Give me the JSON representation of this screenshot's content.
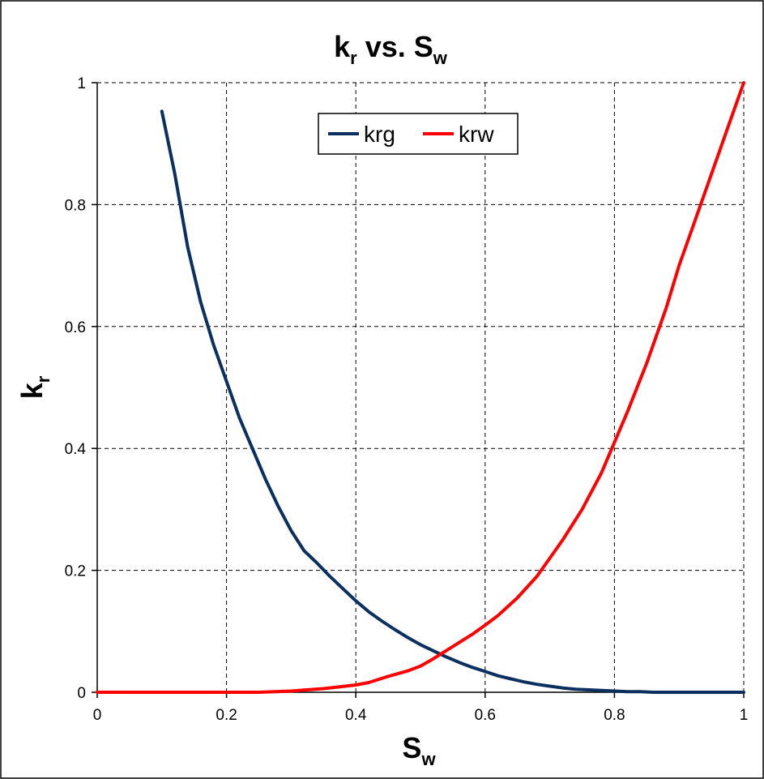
{
  "chart_data": {
    "type": "line",
    "title": {
      "main": "k",
      "sub": "r",
      "mid": " vs. ",
      "main2": "S",
      "sub2": "w"
    },
    "xlabel": {
      "main": "S",
      "sub": "w"
    },
    "ylabel": {
      "main": "k",
      "sub": "r"
    },
    "xlim": [
      0,
      1
    ],
    "ylim": [
      0,
      1
    ],
    "x_ticks": [
      "0",
      "0.2",
      "0.4",
      "0.6",
      "0.8",
      "1"
    ],
    "y_ticks": [
      "0",
      "0.2",
      "0.4",
      "0.6",
      "0.8",
      "1"
    ],
    "grid": true,
    "legend_position": "top-center",
    "series": [
      {
        "name": "krg",
        "color": "#0b2f5e",
        "x": [
          0.1,
          0.12,
          0.14,
          0.16,
          0.18,
          0.2,
          0.22,
          0.24,
          0.26,
          0.28,
          0.3,
          0.32,
          0.34,
          0.36,
          0.38,
          0.4,
          0.42,
          0.44,
          0.46,
          0.48,
          0.5,
          0.52,
          0.54,
          0.56,
          0.58,
          0.6,
          0.62,
          0.64,
          0.66,
          0.68,
          0.7,
          0.72,
          0.74,
          0.76,
          0.78,
          0.8,
          0.82,
          0.84,
          0.86,
          0.88,
          0.9,
          0.92,
          0.94,
          0.96,
          0.98,
          1.0
        ],
        "y": [
          0.953,
          0.85,
          0.73,
          0.64,
          0.57,
          0.51,
          0.45,
          0.4,
          0.35,
          0.305,
          0.265,
          0.232,
          0.212,
          0.19,
          0.17,
          0.15,
          0.132,
          0.117,
          0.103,
          0.09,
          0.078,
          0.068,
          0.058,
          0.049,
          0.041,
          0.034,
          0.027,
          0.022,
          0.017,
          0.013,
          0.01,
          0.007,
          0.005,
          0.004,
          0.003,
          0.002,
          0.001,
          0.001,
          0.0,
          0.0,
          0.0,
          0.0,
          0.0,
          0.0,
          0.0,
          0.0
        ]
      },
      {
        "name": "krw",
        "color": "#ff0000",
        "x": [
          0.0,
          0.1,
          0.2,
          0.25,
          0.3,
          0.35,
          0.4,
          0.42,
          0.45,
          0.48,
          0.5,
          0.52,
          0.55,
          0.58,
          0.6,
          0.62,
          0.65,
          0.68,
          0.7,
          0.72,
          0.75,
          0.78,
          0.8,
          0.82,
          0.85,
          0.88,
          0.9,
          0.92,
          0.95,
          0.98,
          1.0
        ],
        "y": [
          0.0,
          0.0,
          0.0,
          0.0,
          0.002,
          0.006,
          0.012,
          0.016,
          0.026,
          0.035,
          0.043,
          0.055,
          0.075,
          0.095,
          0.11,
          0.126,
          0.155,
          0.19,
          0.22,
          0.25,
          0.3,
          0.36,
          0.41,
          0.46,
          0.54,
          0.63,
          0.7,
          0.76,
          0.85,
          0.94,
          1.0
        ]
      }
    ]
  }
}
